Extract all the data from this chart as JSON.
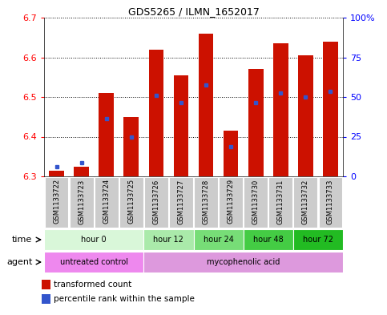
{
  "title": "GDS5265 / ILMN_1652017",
  "samples": [
    "GSM1133722",
    "GSM1133723",
    "GSM1133724",
    "GSM1133725",
    "GSM1133726",
    "GSM1133727",
    "GSM1133728",
    "GSM1133729",
    "GSM1133730",
    "GSM1133731",
    "GSM1133732",
    "GSM1133733"
  ],
  "bar_bottom": 6.3,
  "bar_tops": [
    6.315,
    6.325,
    6.51,
    6.45,
    6.62,
    6.555,
    6.66,
    6.415,
    6.57,
    6.635,
    6.605,
    6.64
  ],
  "percentile_values": [
    6.325,
    6.335,
    6.445,
    6.4,
    6.505,
    6.485,
    6.53,
    6.375,
    6.485,
    6.51,
    6.5,
    6.515
  ],
  "ylim": [
    6.3,
    6.7
  ],
  "yticks_left": [
    6.3,
    6.4,
    6.5,
    6.6,
    6.7
  ],
  "yticks_right": [
    0,
    25,
    50,
    75,
    100
  ],
  "ytick_right_labels": [
    "0",
    "25",
    "50",
    "75",
    "100%"
  ],
  "bar_color": "#cc1100",
  "percentile_color": "#3355cc",
  "time_groups": [
    {
      "label": "hour 0",
      "start": 0,
      "end": 4,
      "color": "#d9f7d9"
    },
    {
      "label": "hour 12",
      "start": 4,
      "end": 6,
      "color": "#aaeaaa"
    },
    {
      "label": "hour 24",
      "start": 6,
      "end": 8,
      "color": "#77dd77"
    },
    {
      "label": "hour 48",
      "start": 8,
      "end": 10,
      "color": "#44cc44"
    },
    {
      "label": "hour 72",
      "start": 10,
      "end": 12,
      "color": "#22bb22"
    }
  ],
  "agent_groups": [
    {
      "label": "untreated control",
      "start": 0,
      "end": 4,
      "color": "#ee88ee"
    },
    {
      "label": "mycophenolic acid",
      "start": 4,
      "end": 12,
      "color": "#dd99dd"
    }
  ],
  "xtick_bg_color": "#cccccc",
  "legend_bar_label": "transformed count",
  "legend_pct_label": "percentile rank within the sample",
  "time_label": "time",
  "agent_label": "agent"
}
